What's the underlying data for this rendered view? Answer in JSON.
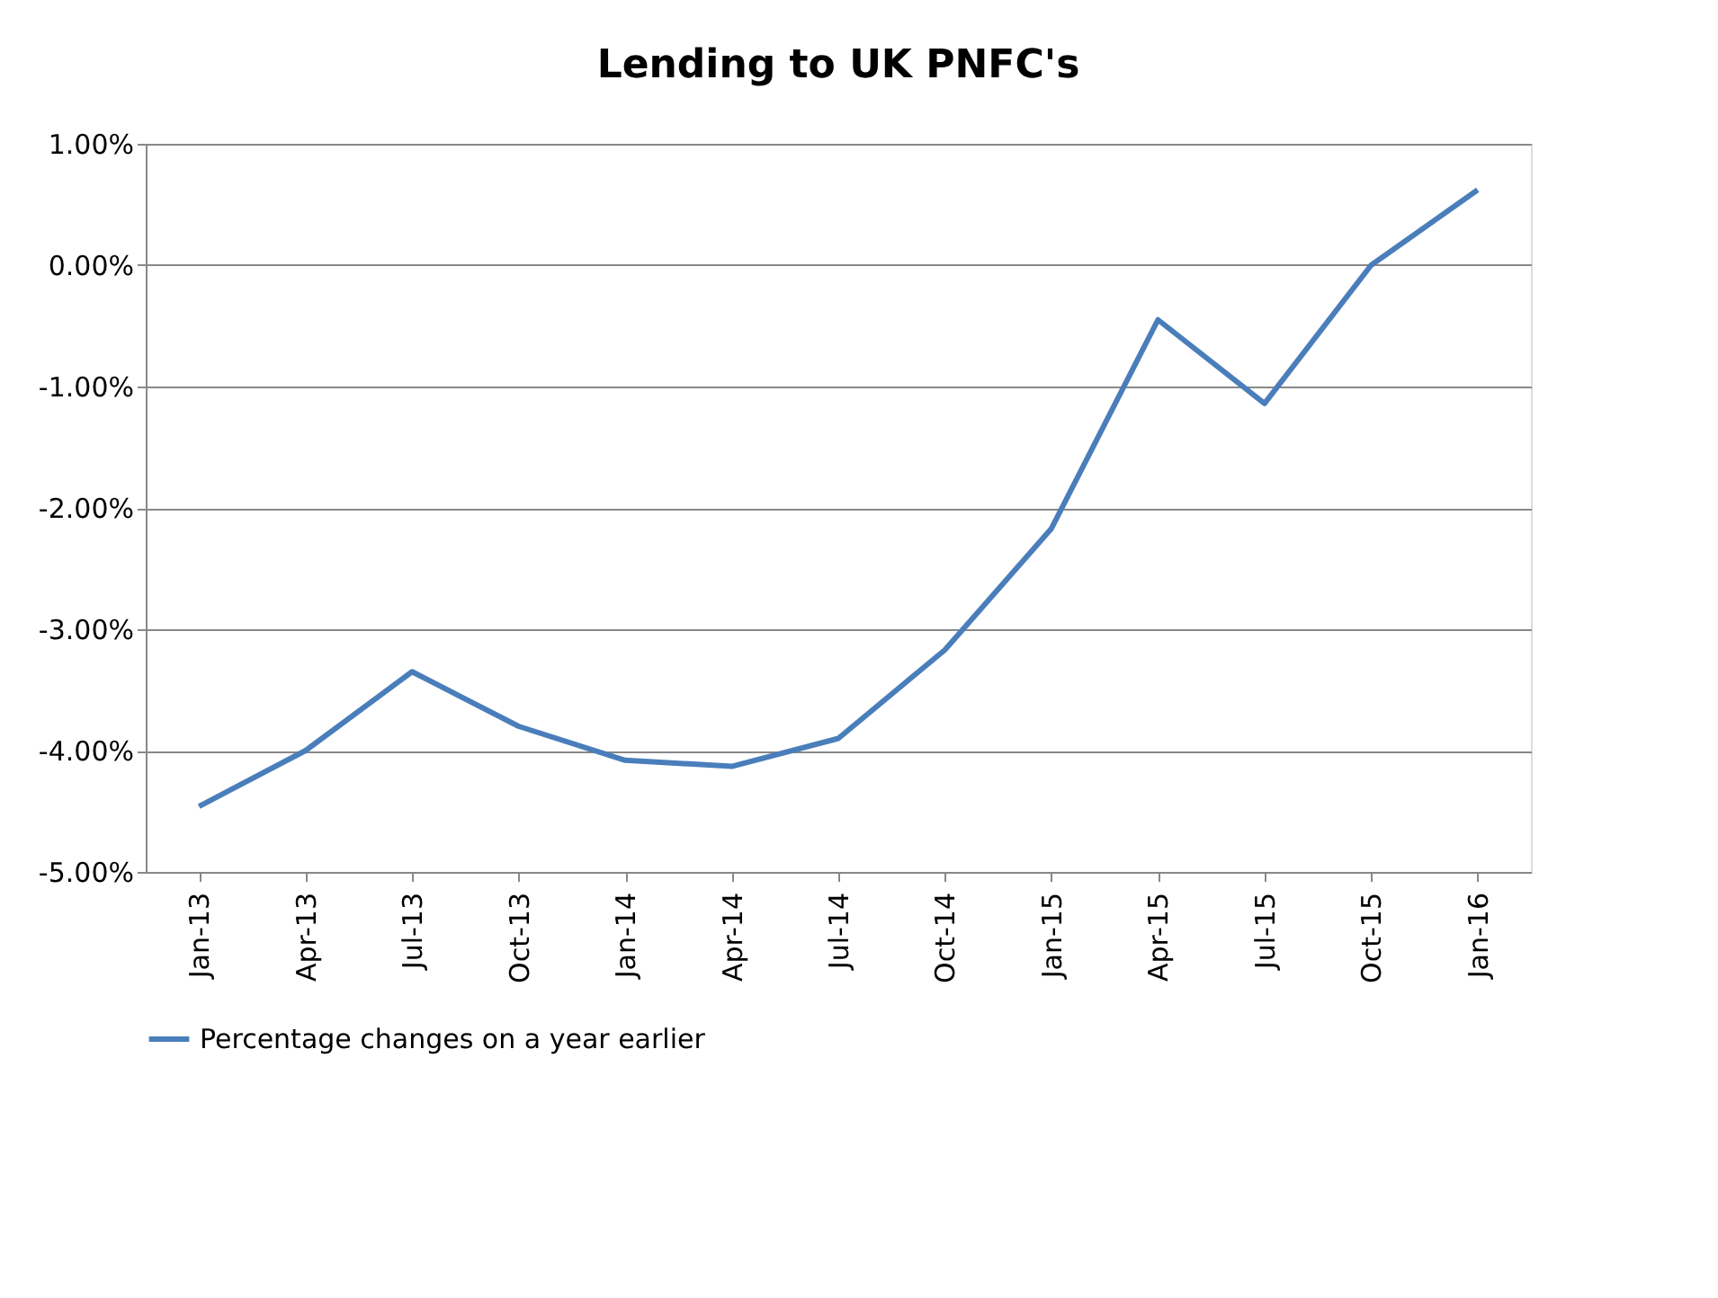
{
  "chart_data": {
    "type": "line",
    "title": "Lending to UK PNFC's",
    "categories": [
      "Jan-13",
      "Apr-13",
      "Jul-13",
      "Oct-13",
      "Jan-14",
      "Apr-14",
      "Jul-14",
      "Oct-14",
      "Jan-15",
      "Apr-15",
      "Jul-15",
      "Oct-15",
      "Jan-16"
    ],
    "series": [
      {
        "name": "Percentage changes on a year earlier",
        "color": "#4a7ebb",
        "values": [
          -4.46,
          -4.0,
          -3.35,
          -3.8,
          -4.08,
          -4.13,
          -3.9,
          -3.17,
          -2.17,
          -0.45,
          -1.14,
          0.0,
          0.62
        ]
      }
    ],
    "ylim": [
      -5,
      1
    ],
    "yticks": [
      {
        "value": -5,
        "label": "-5.00%"
      },
      {
        "value": -4,
        "label": "-4.00%"
      },
      {
        "value": -3,
        "label": "-3.00%"
      },
      {
        "value": -2,
        "label": "-2.00%"
      },
      {
        "value": -1,
        "label": "-1.00%"
      },
      {
        "value": 0,
        "label": "0.00%"
      },
      {
        "value": 1,
        "label": "1.00%"
      }
    ],
    "grid": "y",
    "legend": "bottom",
    "marker": "none",
    "line_style": "solid"
  }
}
